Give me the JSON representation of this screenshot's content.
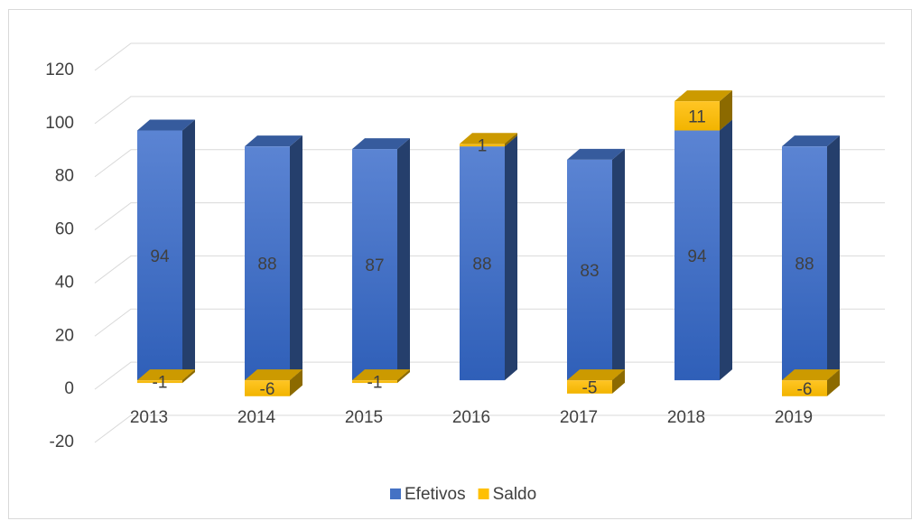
{
  "chart_data": {
    "type": "bar3d_stacked",
    "categories": [
      "2013",
      "2014",
      "2015",
      "2016",
      "2017",
      "2018",
      "2019"
    ],
    "series": [
      {
        "name": "Efetivos",
        "color": "#4472c4",
        "values": [
          94,
          88,
          87,
          88,
          83,
          94,
          88
        ]
      },
      {
        "name": "Saldo",
        "color": "#ffc000",
        "values": [
          -1,
          -6,
          -1,
          1,
          -5,
          11,
          -6
        ]
      }
    ],
    "ylim": [
      -20,
      120
    ],
    "yticks": [
      -20,
      0,
      20,
      40,
      60,
      80,
      100,
      120
    ],
    "grid": true,
    "legend": "bottom"
  }
}
